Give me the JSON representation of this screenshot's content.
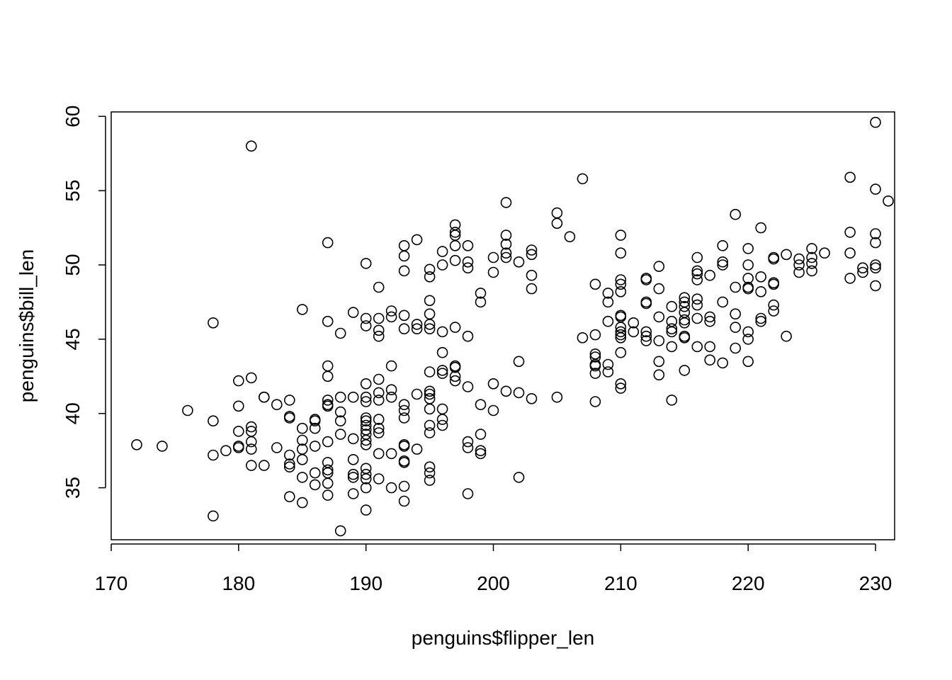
{
  "chart_data": {
    "type": "scatter",
    "title": "",
    "xlabel": "penguins$flipper_len",
    "ylabel": "penguins$bill_len",
    "xlim": [
      170,
      231.5
    ],
    "ylim": [
      31.5,
      60.3
    ],
    "xticks": [
      170,
      180,
      190,
      200,
      210,
      220,
      230
    ],
    "yticks": [
      35,
      40,
      45,
      50,
      55,
      60
    ],
    "marker": "open-circle",
    "marker_color": "#000000",
    "grid": false,
    "points": [
      [
        172,
        37.9
      ],
      [
        174,
        37.8
      ],
      [
        176,
        40.2
      ],
      [
        178,
        46.1
      ],
      [
        178,
        39.5
      ],
      [
        178,
        37.2
      ],
      [
        178,
        33.1
      ],
      [
        179,
        37.5
      ],
      [
        180,
        42.2
      ],
      [
        180,
        40.5
      ],
      [
        180,
        38.8
      ],
      [
        180,
        37.8
      ],
      [
        180,
        37.7
      ],
      [
        181,
        58.0
      ],
      [
        181,
        42.4
      ],
      [
        181,
        39.1
      ],
      [
        181,
        38.8
      ],
      [
        181,
        38.1
      ],
      [
        181,
        37.6
      ],
      [
        181,
        36.5
      ],
      [
        182,
        41.1
      ],
      [
        182,
        41.1
      ],
      [
        182,
        36.5
      ],
      [
        183,
        40.6
      ],
      [
        183,
        37.7
      ],
      [
        184,
        40.9
      ],
      [
        184,
        39.8
      ],
      [
        184,
        39.7
      ],
      [
        184,
        37.2
      ],
      [
        184,
        36.6
      ],
      [
        184,
        36.4
      ],
      [
        184,
        34.4
      ],
      [
        185,
        47.0
      ],
      [
        185,
        39.0
      ],
      [
        185,
        38.2
      ],
      [
        185,
        37.6
      ],
      [
        185,
        36.9
      ],
      [
        185,
        35.7
      ],
      [
        185,
        34.0
      ],
      [
        186,
        39.6
      ],
      [
        186,
        39.5
      ],
      [
        186,
        39.0
      ],
      [
        186,
        37.8
      ],
      [
        186,
        36.0
      ],
      [
        186,
        35.2
      ],
      [
        187,
        51.5
      ],
      [
        187,
        46.2
      ],
      [
        187,
        43.2
      ],
      [
        187,
        42.5
      ],
      [
        187,
        40.9
      ],
      [
        187,
        40.6
      ],
      [
        187,
        40.5
      ],
      [
        187,
        38.1
      ],
      [
        187,
        36.7
      ],
      [
        187,
        36.2
      ],
      [
        187,
        36.0
      ],
      [
        187,
        35.3
      ],
      [
        187,
        34.5
      ],
      [
        188,
        45.4
      ],
      [
        188,
        41.1
      ],
      [
        188,
        40.1
      ],
      [
        188,
        39.5
      ],
      [
        188,
        38.6
      ],
      [
        188,
        32.1
      ],
      [
        189,
        46.8
      ],
      [
        189,
        41.1
      ],
      [
        189,
        38.3
      ],
      [
        189,
        36.9
      ],
      [
        189,
        35.9
      ],
      [
        189,
        35.7
      ],
      [
        189,
        34.6
      ],
      [
        190,
        50.1
      ],
      [
        190,
        46.4
      ],
      [
        190,
        45.9
      ],
      [
        190,
        42.0
      ],
      [
        190,
        41.1
      ],
      [
        190,
        40.8
      ],
      [
        190,
        39.7
      ],
      [
        190,
        39.5
      ],
      [
        190,
        39.2
      ],
      [
        190,
        38.9
      ],
      [
        190,
        38.6
      ],
      [
        190,
        38.2
      ],
      [
        190,
        37.9
      ],
      [
        190,
        36.3
      ],
      [
        190,
        35.9
      ],
      [
        190,
        35.6
      ],
      [
        190,
        35.0
      ],
      [
        190,
        33.5
      ],
      [
        191,
        48.5
      ],
      [
        191,
        46.4
      ],
      [
        191,
        45.6
      ],
      [
        191,
        45.2
      ],
      [
        191,
        42.3
      ],
      [
        191,
        41.4
      ],
      [
        191,
        40.9
      ],
      [
        191,
        39.6
      ],
      [
        191,
        39.0
      ],
      [
        191,
        38.7
      ],
      [
        191,
        37.3
      ],
      [
        191,
        35.6
      ],
      [
        192,
        46.9
      ],
      [
        192,
        46.5
      ],
      [
        192,
        43.2
      ],
      [
        192,
        41.6
      ],
      [
        192,
        41.1
      ],
      [
        192,
        37.3
      ],
      [
        192,
        35.0
      ],
      [
        193,
        51.3
      ],
      [
        193,
        50.6
      ],
      [
        193,
        49.6
      ],
      [
        193,
        46.6
      ],
      [
        193,
        45.7
      ],
      [
        193,
        40.6
      ],
      [
        193,
        40.2
      ],
      [
        193,
        39.7
      ],
      [
        193,
        37.9
      ],
      [
        193,
        37.8
      ],
      [
        193,
        36.8
      ],
      [
        193,
        36.7
      ],
      [
        193,
        35.1
      ],
      [
        193,
        34.1
      ],
      [
        194,
        51.7
      ],
      [
        194,
        46.0
      ],
      [
        194,
        45.7
      ],
      [
        194,
        41.3
      ],
      [
        194,
        37.6
      ],
      [
        195,
        49.7
      ],
      [
        195,
        49.2
      ],
      [
        195,
        47.6
      ],
      [
        195,
        46.7
      ],
      [
        195,
        46.0
      ],
      [
        195,
        45.7
      ],
      [
        195,
        42.8
      ],
      [
        195,
        41.5
      ],
      [
        195,
        41.3
      ],
      [
        195,
        41.0
      ],
      [
        195,
        40.3
      ],
      [
        195,
        39.2
      ],
      [
        195,
        38.7
      ],
      [
        195,
        36.4
      ],
      [
        195,
        36.0
      ],
      [
        195,
        35.5
      ],
      [
        196,
        50.9
      ],
      [
        196,
        50.0
      ],
      [
        196,
        45.5
      ],
      [
        196,
        44.1
      ],
      [
        196,
        42.9
      ],
      [
        196,
        42.7
      ],
      [
        196,
        40.3
      ],
      [
        196,
        39.6
      ],
      [
        196,
        39.2
      ],
      [
        197,
        52.7
      ],
      [
        197,
        52.2
      ],
      [
        197,
        52.0
      ],
      [
        197,
        51.3
      ],
      [
        197,
        50.3
      ],
      [
        197,
        45.8
      ],
      [
        197,
        43.2
      ],
      [
        197,
        43.1
      ],
      [
        197,
        42.5
      ],
      [
        197,
        42.2
      ],
      [
        198,
        51.3
      ],
      [
        198,
        50.2
      ],
      [
        198,
        49.8
      ],
      [
        198,
        45.2
      ],
      [
        198,
        41.8
      ],
      [
        198,
        38.1
      ],
      [
        198,
        37.7
      ],
      [
        198,
        34.6
      ],
      [
        199,
        48.1
      ],
      [
        199,
        47.5
      ],
      [
        199,
        40.6
      ],
      [
        199,
        38.6
      ],
      [
        199,
        37.5
      ],
      [
        199,
        37.3
      ],
      [
        200,
        50.5
      ],
      [
        200,
        49.5
      ],
      [
        200,
        42.0
      ],
      [
        200,
        40.2
      ],
      [
        201,
        54.2
      ],
      [
        201,
        52.0
      ],
      [
        201,
        51.4
      ],
      [
        201,
        50.8
      ],
      [
        201,
        50.5
      ],
      [
        201,
        41.5
      ],
      [
        202,
        50.2
      ],
      [
        202,
        43.5
      ],
      [
        202,
        41.4
      ],
      [
        202,
        35.7
      ],
      [
        203,
        51.0
      ],
      [
        203,
        50.7
      ],
      [
        203,
        49.3
      ],
      [
        203,
        48.4
      ],
      [
        203,
        41.0
      ],
      [
        205,
        53.5
      ],
      [
        205,
        52.8
      ],
      [
        205,
        41.1
      ],
      [
        206,
        51.9
      ],
      [
        207,
        55.8
      ],
      [
        207,
        45.1
      ],
      [
        208,
        48.7
      ],
      [
        208,
        45.3
      ],
      [
        208,
        44.0
      ],
      [
        208,
        43.8
      ],
      [
        208,
        43.3
      ],
      [
        208,
        43.2
      ],
      [
        208,
        42.7
      ],
      [
        208,
        40.8
      ],
      [
        209,
        48.1
      ],
      [
        209,
        47.5
      ],
      [
        209,
        46.2
      ],
      [
        209,
        43.3
      ],
      [
        209,
        42.8
      ],
      [
        210,
        52.0
      ],
      [
        210,
        50.8
      ],
      [
        210,
        49.0
      ],
      [
        210,
        48.7
      ],
      [
        210,
        48.2
      ],
      [
        210,
        46.6
      ],
      [
        210,
        46.5
      ],
      [
        210,
        45.8
      ],
      [
        210,
        45.5
      ],
      [
        210,
        45.3
      ],
      [
        210,
        45.1
      ],
      [
        210,
        44.1
      ],
      [
        210,
        42.0
      ],
      [
        210,
        41.7
      ],
      [
        211,
        45.5
      ],
      [
        211,
        46.1
      ],
      [
        212,
        49.1
      ],
      [
        212,
        49.0
      ],
      [
        212,
        47.5
      ],
      [
        212,
        47.4
      ],
      [
        212,
        45.5
      ],
      [
        212,
        45.2
      ],
      [
        212,
        44.9
      ],
      [
        213,
        49.9
      ],
      [
        213,
        48.4
      ],
      [
        213,
        46.5
      ],
      [
        213,
        44.9
      ],
      [
        213,
        43.5
      ],
      [
        213,
        42.6
      ],
      [
        214,
        47.2
      ],
      [
        214,
        46.2
      ],
      [
        214,
        45.7
      ],
      [
        214,
        45.5
      ],
      [
        214,
        44.5
      ],
      [
        214,
        40.9
      ],
      [
        215,
        47.8
      ],
      [
        215,
        47.5
      ],
      [
        215,
        47.2
      ],
      [
        215,
        46.8
      ],
      [
        215,
        46.3
      ],
      [
        215,
        46.1
      ],
      [
        215,
        45.2
      ],
      [
        215,
        45.1
      ],
      [
        215,
        42.9
      ],
      [
        216,
        50.5
      ],
      [
        216,
        49.6
      ],
      [
        216,
        49.4
      ],
      [
        216,
        49.0
      ],
      [
        216,
        47.7
      ],
      [
        216,
        47.3
      ],
      [
        216,
        46.4
      ],
      [
        216,
        44.5
      ],
      [
        217,
        49.3
      ],
      [
        217,
        46.5
      ],
      [
        217,
        46.2
      ],
      [
        217,
        44.5
      ],
      [
        217,
        43.6
      ],
      [
        218,
        51.3
      ],
      [
        218,
        50.2
      ],
      [
        218,
        50.0
      ],
      [
        218,
        47.5
      ],
      [
        218,
        43.4
      ],
      [
        219,
        53.4
      ],
      [
        219,
        48.5
      ],
      [
        219,
        46.7
      ],
      [
        219,
        45.8
      ],
      [
        219,
        44.4
      ],
      [
        220,
        51.1
      ],
      [
        220,
        50.0
      ],
      [
        220,
        49.1
      ],
      [
        220,
        48.5
      ],
      [
        220,
        48.4
      ],
      [
        220,
        45.5
      ],
      [
        220,
        45.0
      ],
      [
        220,
        43.5
      ],
      [
        221,
        52.5
      ],
      [
        221,
        49.2
      ],
      [
        221,
        48.2
      ],
      [
        221,
        46.4
      ],
      [
        221,
        46.2
      ],
      [
        222,
        50.5
      ],
      [
        222,
        50.4
      ],
      [
        222,
        48.8
      ],
      [
        222,
        48.7
      ],
      [
        222,
        47.3
      ],
      [
        222,
        46.9
      ],
      [
        223,
        50.7
      ],
      [
        223,
        45.2
      ],
      [
        224,
        50.4
      ],
      [
        224,
        50.0
      ],
      [
        224,
        49.5
      ],
      [
        225,
        51.1
      ],
      [
        225,
        50.5
      ],
      [
        225,
        50.1
      ],
      [
        225,
        49.6
      ],
      [
        226,
        50.8
      ],
      [
        228,
        55.9
      ],
      [
        228,
        52.2
      ],
      [
        228,
        50.8
      ],
      [
        228,
        49.1
      ],
      [
        229,
        49.8
      ],
      [
        229,
        49.5
      ],
      [
        230,
        59.6
      ],
      [
        230,
        55.1
      ],
      [
        230,
        52.1
      ],
      [
        230,
        51.5
      ],
      [
        230,
        50.0
      ],
      [
        230,
        49.8
      ],
      [
        230,
        48.6
      ],
      [
        231,
        54.3
      ]
    ]
  }
}
